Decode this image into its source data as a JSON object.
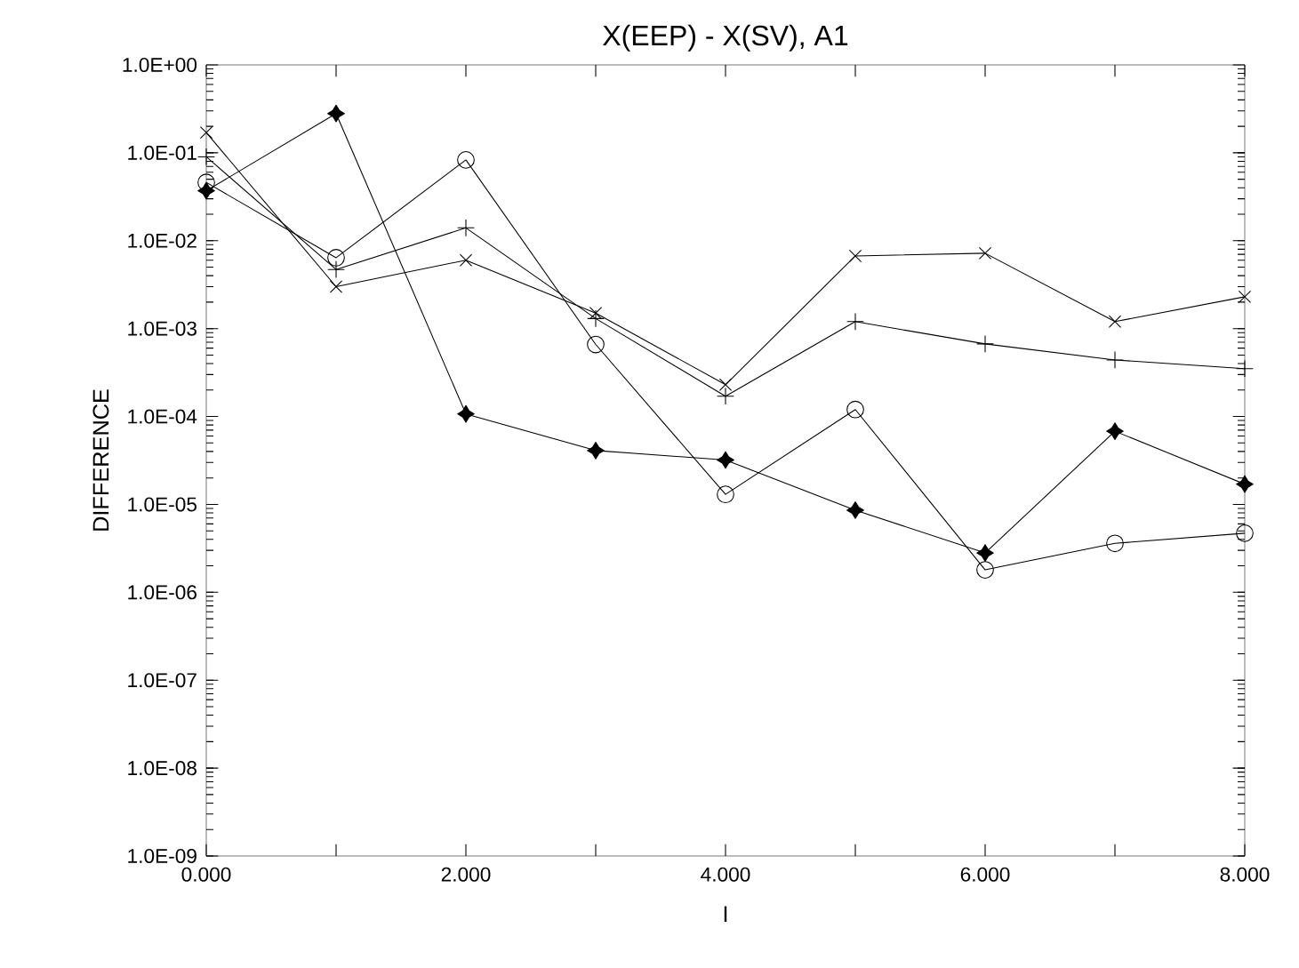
{
  "chart_data": {
    "type": "line",
    "title": "X(EEP) - X(SV), A1",
    "xlabel": "I",
    "ylabel": "DIFFERENCE",
    "log": "y",
    "grid": false,
    "line_style": "solid",
    "x": [
      0,
      1,
      2,
      3,
      4,
      5,
      6,
      7,
      8
    ],
    "xlim": [
      0,
      8
    ],
    "xticks": [
      {
        "value": 0,
        "label": "0.000"
      },
      {
        "value": 1,
        "label": null
      },
      {
        "value": 2,
        "label": "2.000"
      },
      {
        "value": 3,
        "label": null
      },
      {
        "value": 4,
        "label": "4.000"
      },
      {
        "value": 5,
        "label": null
      },
      {
        "value": 6,
        "label": "6.000"
      },
      {
        "value": 7,
        "label": null
      },
      {
        "value": 8,
        "label": "8.000"
      }
    ],
    "ylim": [
      1e-09,
      1
    ],
    "yticks": [
      {
        "value": 1e-09,
        "label": "1.0E-09"
      },
      {
        "value": 1e-08,
        "label": "1.0E-08"
      },
      {
        "value": 1e-07,
        "label": "1.0E-07"
      },
      {
        "value": 1e-06,
        "label": "1.0E-06"
      },
      {
        "value": 1e-05,
        "label": "1.0E-05"
      },
      {
        "value": 0.0001,
        "label": "1.0E-04"
      },
      {
        "value": 0.001,
        "label": "1.0E-03"
      },
      {
        "value": 0.01,
        "label": "1.0E-02"
      },
      {
        "value": 0.1,
        "label": "1.0E-01"
      },
      {
        "value": 1,
        "label": "1.0E+00"
      }
    ],
    "series": [
      {
        "color": "#000000",
        "marker": "cross",
        "values": [
          0.17,
          0.003,
          0.006,
          0.0015,
          0.00023,
          0.0067,
          0.0072,
          0.0012,
          0.0023
        ]
      },
      {
        "color": "#000000",
        "marker": "plus",
        "values": [
          0.09,
          0.0047,
          0.014,
          0.0013,
          0.00017,
          0.0012,
          0.00067,
          0.00044,
          0.00035
        ]
      },
      {
        "color": "#000000",
        "marker": "circle",
        "values": [
          0.046,
          0.0064,
          0.083,
          0.00066,
          1.3e-05,
          0.00012,
          1.8e-06,
          3.6e-06,
          4.7e-06
        ]
      },
      {
        "color": "#000000",
        "marker": "star",
        "values": [
          0.037,
          0.28,
          0.000107,
          4.1e-05,
          3.2e-05,
          8.6e-06,
          2.8e-06,
          6.8e-05,
          1.7e-05
        ]
      }
    ]
  }
}
